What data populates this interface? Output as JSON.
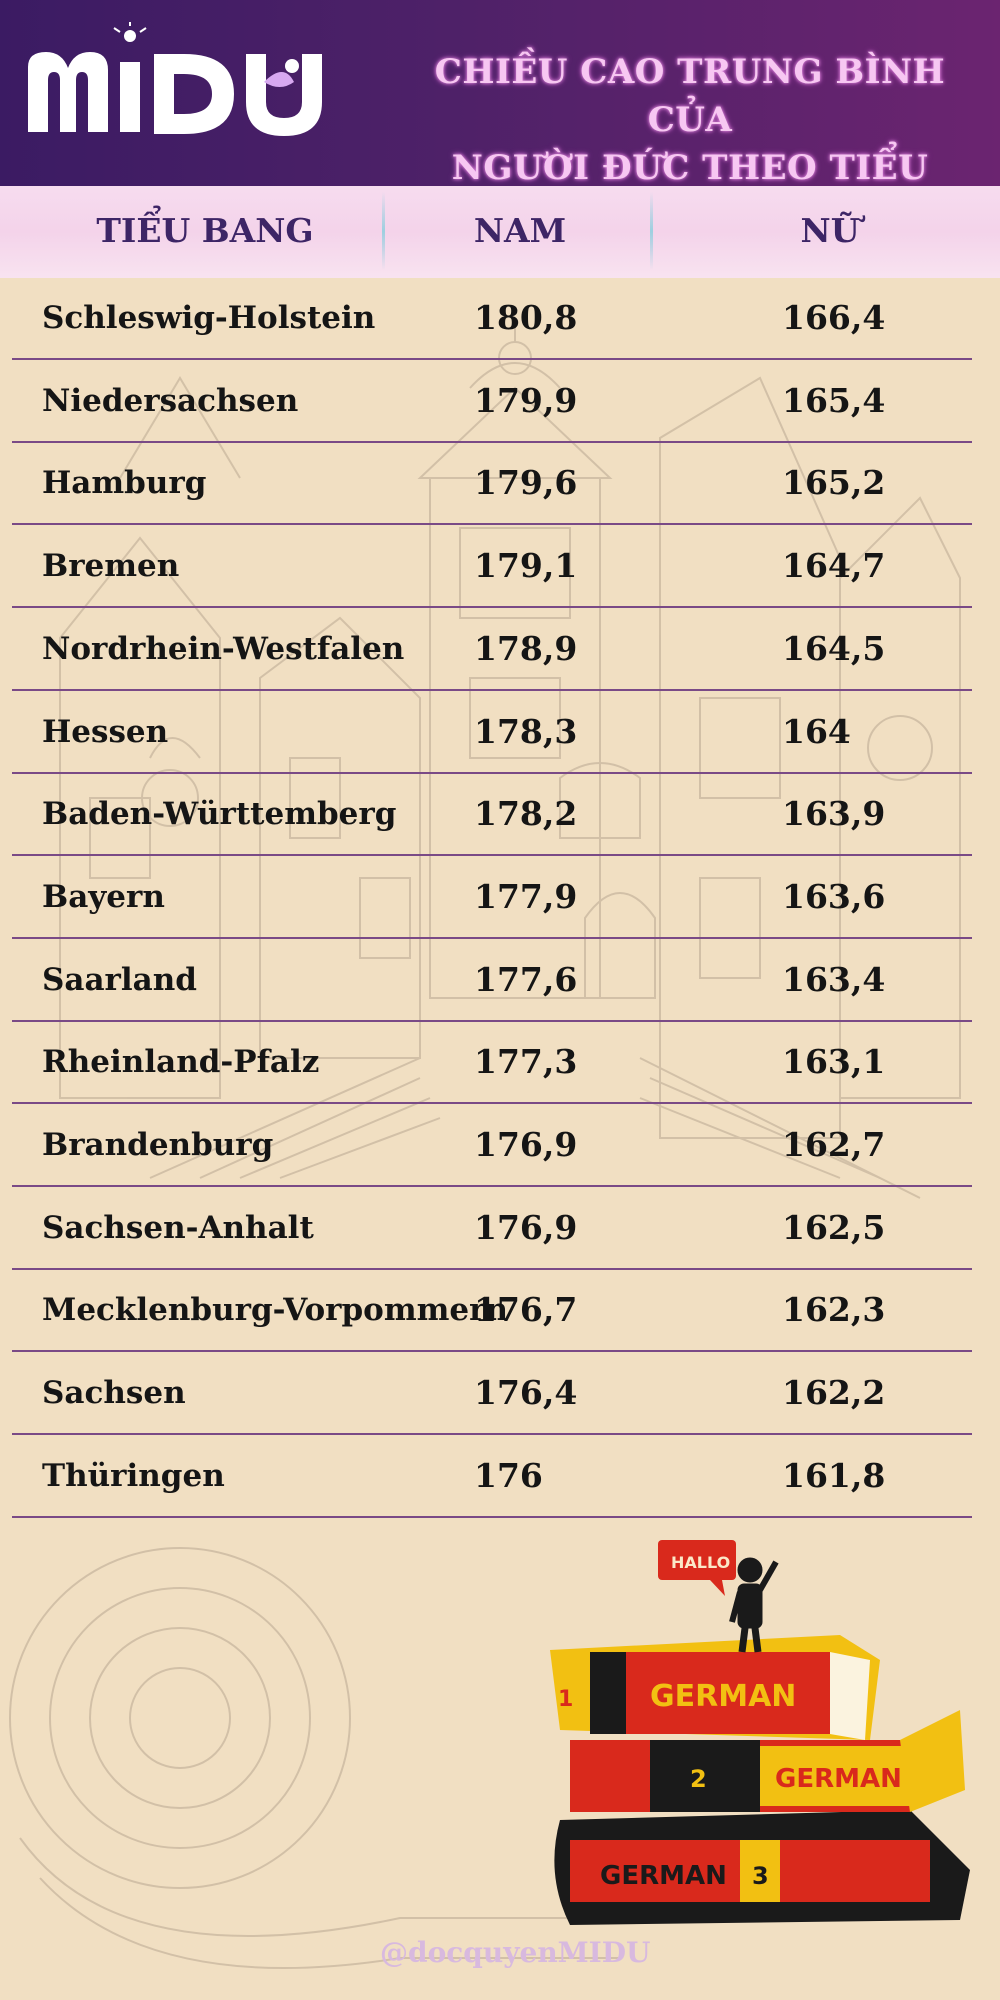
{
  "header": {
    "logo_text": "MIDU",
    "title_line1": "CHIỀU CAO TRUNG BÌNH CỦA",
    "title_line2": "NGƯỜI ĐỨC THEO TIỂU BANG"
  },
  "columns": {
    "state": "TIỂU BANG",
    "male": "NAM",
    "female": "NỮ"
  },
  "rows": [
    {
      "state": "Schleswig-Holstein",
      "male": "180,8",
      "female": "166,4"
    },
    {
      "state": "Niedersachsen",
      "male": "179,9",
      "female": "165,4"
    },
    {
      "state": "Hamburg",
      "male": "179,6",
      "female": "165,2"
    },
    {
      "state": "Bremen",
      "male": "179,1",
      "female": "164,7"
    },
    {
      "state": "Nordrhein-Westfalen",
      "male": "178,9",
      "female": "164,5"
    },
    {
      "state": "Hessen",
      "male": "178,3",
      "female": "164"
    },
    {
      "state": "Baden-Württemberg",
      "male": "178,2",
      "female": "163,9"
    },
    {
      "state": "Bayern",
      "male": "177,9",
      "female": "163,6"
    },
    {
      "state": "Saarland",
      "male": "177,6",
      "female": "163,4"
    },
    {
      "state": "Rheinland-Pfalz",
      "male": "177,3",
      "female": "163,1"
    },
    {
      "state": "Brandenburg",
      "male": "176,9",
      "female": "162,7"
    },
    {
      "state": "Sachsen-Anhalt",
      "male": "176,9",
      "female": "162,5"
    },
    {
      "state": "Mecklenburg-Vorpommern",
      "male": "176,7",
      "female": "162,3"
    },
    {
      "state": "Sachsen",
      "male": "176,4",
      "female": "162,2"
    },
    {
      "state": "Thüringen",
      "male": "176",
      "female": "161,8"
    }
  ],
  "illustration": {
    "speech_bubble": "HALLO",
    "book1_number": "1",
    "book1_label": "GERMAN",
    "book2_number": "2",
    "book2_label": "GERMAN",
    "book3_number": "3",
    "book3_label": "GERMAN"
  },
  "footer": {
    "handle": "@docquyenMIDU"
  },
  "colors": {
    "header_bg": "#4a1f66",
    "title_text": "#f7c7f2",
    "column_header_text": "#3d2566",
    "page_bg": "#f1dfc2",
    "row_divider": "#7a4a86",
    "book_red": "#d9291c",
    "book_yellow": "#f2c012",
    "book_black": "#1a1a1a"
  }
}
